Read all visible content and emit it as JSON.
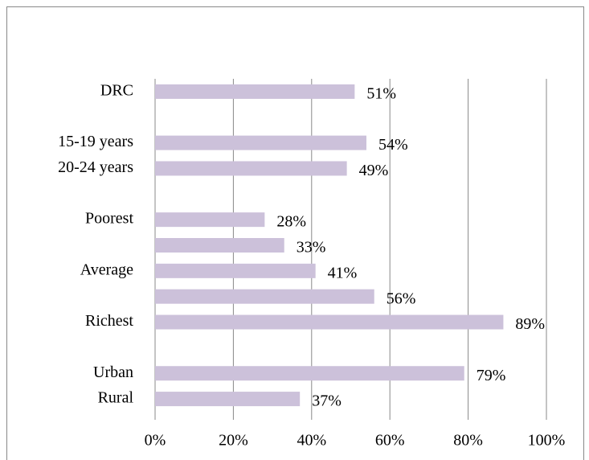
{
  "chart_data": {
    "type": "bar",
    "orientation": "horizontal",
    "categories": [
      "DRC",
      null,
      "15-19 years",
      "20-24 years",
      null,
      "Poorest",
      null,
      "Average",
      null,
      "Richest",
      null,
      "Urban",
      "Rural"
    ],
    "values": [
      51,
      null,
      54,
      49,
      null,
      28,
      33,
      41,
      56,
      89,
      null,
      79,
      37
    ],
    "value_labels": [
      "51%",
      null,
      "54%",
      "49%",
      null,
      "28%",
      "33%",
      "41%",
      "56%",
      "89%",
      null,
      "79%",
      "37%"
    ],
    "color": "#ccc1da",
    "xlim": [
      0,
      100
    ],
    "xticks": [
      {
        "value": 0,
        "label": "0%"
      },
      {
        "value": 20,
        "label": "20%"
      },
      {
        "value": 40,
        "label": "40%"
      },
      {
        "value": 60,
        "label": "60%"
      },
      {
        "value": 80,
        "label": "80%"
      },
      {
        "value": 100,
        "label": "100%"
      }
    ],
    "grid": true
  }
}
